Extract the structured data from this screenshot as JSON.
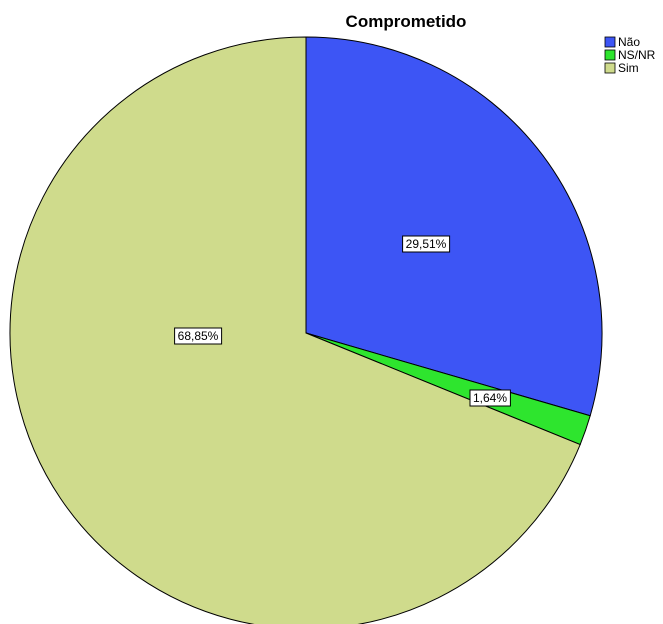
{
  "chart_data": {
    "type": "pie",
    "title": "Comprometido",
    "categories": [
      "Não",
      "NS/NR",
      "Sim"
    ],
    "values": [
      29.51,
      1.64,
      68.85
    ],
    "labels": [
      "29,51%",
      "1,64%",
      "68,85%"
    ],
    "colors": [
      "#3d55f5",
      "#2ee52e",
      "#cfdb8c"
    ],
    "start_angle_deg": 0,
    "direction": "clockwise",
    "legend_position": "top-right"
  }
}
